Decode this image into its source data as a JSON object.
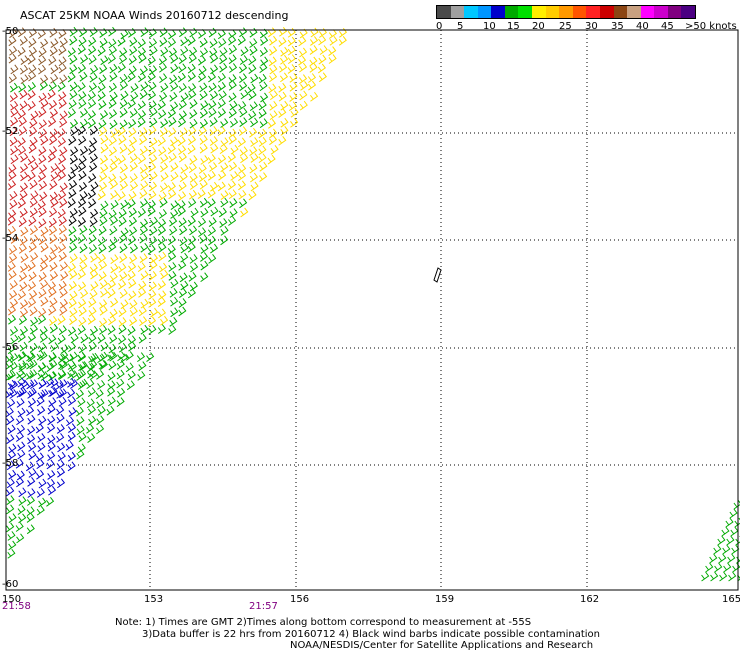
{
  "title": "ASCAT 25KM NOAA Winds 20160712 descending",
  "legend": {
    "colors": [
      "#4a4a4a",
      "#a0a0a0",
      "#00c8ff",
      "#0096ff",
      "#0000cc",
      "#00aa00",
      "#00e000",
      "#ffee00",
      "#ffcc00",
      "#ff9900",
      "#ff5500",
      "#ff2222",
      "#cc0000",
      "#8b4513",
      "#c8a080",
      "#ff00ff",
      "#cc00cc",
      "#800080",
      "#4b0082"
    ],
    "labels": [
      "0",
      "5",
      "10",
      "15",
      "20",
      "25",
      "30",
      "35",
      "40",
      "45",
      ">50 knots"
    ]
  },
  "lat_labels": [
    "-50",
    "-52",
    "-54",
    "-56",
    "-58",
    "-60"
  ],
  "lon_labels": [
    "150",
    "153",
    "156",
    "159",
    "162",
    "165"
  ],
  "times": [
    "21:58",
    "21:57"
  ],
  "notes": [
    "Note: 1) Times are GMT 2)Times along bottom correspond to measurement at -55S",
    "3)Data buffer is 22 hrs from 20160712 4) Black wind barbs indicate possible contamination",
    "NOAA/NESDIS/Center for Satellite Applications and Research"
  ]
}
